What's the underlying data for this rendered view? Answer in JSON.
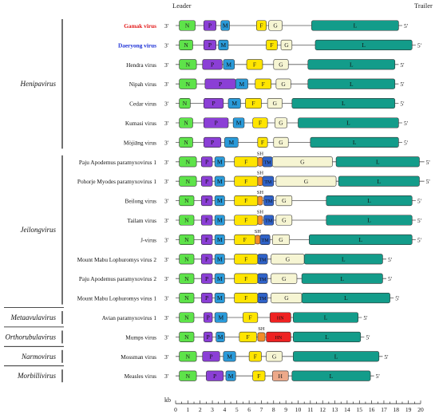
{
  "header": {
    "leader": "Leader",
    "trailer": "Trailer"
  },
  "end_labels": {
    "three_prime": "3'",
    "five_prime": "5'"
  },
  "colors": {
    "N": "#5ee34a",
    "P": "#8b3fd6",
    "M": "#2a9ad9",
    "F": "#ffe500",
    "G": "#f6f5d3",
    "L": "#139c8a",
    "SH": "#f28c28",
    "TM": "#2f62c8",
    "HN": "#ee2222",
    "H": "#eda98a",
    "gamak_label": "#e31b1b",
    "daeryong_label": "#1b2fd6"
  },
  "genera": [
    {
      "name": "Henipavirus",
      "first": 0,
      "last": 6
    },
    {
      "name": "Jeilongvirus",
      "first": 7,
      "last": 14
    },
    {
      "name": "Metaavulavirus",
      "first": 15,
      "last": 15
    },
    {
      "name": "Orthorubulavirus",
      "first": 16,
      "last": 16
    },
    {
      "name": "Narmovirus",
      "first": 17,
      "last": 17
    },
    {
      "name": "Morbillivirus",
      "first": 18,
      "last": 18
    }
  ],
  "viruses": [
    {
      "name": "Gamak virus",
      "bold": true,
      "color": "#e31b1b",
      "length": 18.5,
      "genes": [
        [
          "N",
          0.3,
          1.6
        ],
        [
          "P",
          2.3,
          3.3
        ],
        [
          "M",
          3.7,
          4.4
        ],
        [
          "F",
          6.6,
          7.4
        ],
        [
          "G",
          7.6,
          8.7
        ],
        [
          "L",
          11.1,
          18.2
        ]
      ]
    },
    {
      "name": "Daeryong virus",
      "bold": true,
      "color": "#1b2fd6",
      "length": 19.6,
      "genes": [
        [
          "N",
          0.3,
          1.4
        ],
        [
          "P",
          2.3,
          3.3
        ],
        [
          "M",
          3.5,
          4.3
        ],
        [
          "F",
          7.4,
          8.3
        ],
        [
          "G",
          8.6,
          9.5
        ],
        [
          "L",
          11.4,
          19.3
        ]
      ]
    },
    {
      "name": "Hendra virus",
      "length": 18.2,
      "genes": [
        [
          "N",
          0.3,
          1.7
        ],
        [
          "P",
          2.2,
          3.8
        ],
        [
          "M",
          3.9,
          4.8
        ],
        [
          "F",
          5.8,
          7.1
        ],
        [
          "G",
          8.0,
          9.2
        ],
        [
          "L",
          10.8,
          17.9
        ]
      ]
    },
    {
      "name": "Nipah virus",
      "length": 18.2,
      "genes": [
        [
          "N",
          0.3,
          1.7
        ],
        [
          "P",
          2.4,
          4.9
        ],
        [
          "M",
          4.9,
          5.9
        ],
        [
          "F",
          6.5,
          7.8
        ],
        [
          "G",
          8.2,
          9.4
        ],
        [
          "L",
          10.8,
          17.9
        ]
      ]
    },
    {
      "name": "Cedar virus",
      "length": 18.2,
      "genes": [
        [
          "N",
          0.3,
          1.2
        ],
        [
          "P",
          2.3,
          3.9
        ],
        [
          "M",
          4.3,
          5.3
        ],
        [
          "F",
          5.7,
          7.0
        ],
        [
          "G",
          7.5,
          8.7
        ],
        [
          "L",
          9.5,
          17.9
        ]
      ]
    },
    {
      "name": "Kumasi virus",
      "length": 18.5,
      "genes": [
        [
          "N",
          0.3,
          1.4
        ],
        [
          "P",
          2.3,
          4.3
        ],
        [
          "M",
          4.7,
          5.6
        ],
        [
          "F",
          6.3,
          7.5
        ],
        [
          "G",
          8.1,
          9.1
        ],
        [
          "L",
          10.0,
          18.2
        ]
      ]
    },
    {
      "name": "Mòjiāng virus",
      "length": 18.5,
      "genes": [
        [
          "N",
          0.3,
          1.4
        ],
        [
          "P",
          2.3,
          3.7
        ],
        [
          "M",
          4.0,
          5.1
        ],
        [
          "F",
          6.7,
          7.5
        ],
        [
          "G",
          8.0,
          9.2
        ],
        [
          "L",
          11.0,
          18.2
        ]
      ]
    },
    {
      "name": "Paju Apodemus paramyxovirus 1",
      "length": 20.3,
      "genes": [
        [
          "N",
          0.3,
          1.7
        ],
        [
          "P",
          2.1,
          3.0
        ],
        [
          "M",
          3.2,
          4.0
        ],
        [
          "F",
          4.8,
          6.7
        ],
        [
          "SH",
          6.7,
          7.1
        ],
        [
          "TM",
          7.1,
          7.9
        ],
        [
          "G",
          7.9,
          12.8
        ],
        [
          "L",
          13.1,
          19.9
        ]
      ]
    },
    {
      "name": "Pohorje Myodes paramyxovirus 1",
      "length": 20.3,
      "genes": [
        [
          "N",
          0.3,
          1.7
        ],
        [
          "P",
          2.1,
          3.0
        ],
        [
          "M",
          3.2,
          4.0
        ],
        [
          "F",
          4.8,
          6.7
        ],
        [
          "SH",
          6.7,
          7.1
        ],
        [
          "TM",
          7.1,
          8.0
        ],
        [
          "G",
          8.2,
          13.1
        ],
        [
          "L",
          13.3,
          19.9
        ]
      ]
    },
    {
      "name": "Beilong virus",
      "length": 19.6,
      "genes": [
        [
          "N",
          0.3,
          1.5
        ],
        [
          "P",
          2.1,
          3.0
        ],
        [
          "M",
          3.2,
          4.0
        ],
        [
          "F",
          4.8,
          6.7
        ],
        [
          "SH",
          6.7,
          7.1
        ],
        [
          "TM",
          7.2,
          8.0
        ],
        [
          "G",
          8.2,
          9.5
        ],
        [
          "L",
          12.3,
          19.3
        ]
      ]
    },
    {
      "name": "Tailam virus",
      "length": 19.6,
      "genes": [
        [
          "N",
          0.3,
          1.5
        ],
        [
          "P",
          2.1,
          3.0
        ],
        [
          "M",
          3.2,
          4.0
        ],
        [
          "F",
          4.8,
          6.7
        ],
        [
          "SH",
          6.7,
          7.1
        ],
        [
          "TM",
          7.2,
          8.0
        ],
        [
          "G",
          8.2,
          9.5
        ],
        [
          "L",
          12.3,
          19.3
        ]
      ]
    },
    {
      "name": "J-virus",
      "length": 19.6,
      "genes": [
        [
          "N",
          0.3,
          1.5
        ],
        [
          "P",
          2.1,
          3.0
        ],
        [
          "M",
          3.2,
          4.0
        ],
        [
          "F",
          4.8,
          6.5
        ],
        [
          "SH",
          6.5,
          6.9
        ],
        [
          "TM",
          6.9,
          7.7
        ],
        [
          "G",
          7.9,
          9.3
        ],
        [
          "L",
          10.9,
          19.3
        ]
      ]
    },
    {
      "name": "Mount Mabu Lophuromys virus 2",
      "length": 17.2,
      "genes": [
        [
          "N",
          0.3,
          1.5
        ],
        [
          "P",
          2.1,
          3.0
        ],
        [
          "M",
          3.2,
          4.0
        ],
        [
          "F",
          4.8,
          6.7
        ],
        [
          "TM",
          6.7,
          7.5
        ],
        [
          "G",
          7.8,
          10.5
        ],
        [
          "L",
          10.5,
          16.9
        ]
      ]
    },
    {
      "name": "Paju Apodemus paramyxovirus 2",
      "length": 17.2,
      "genes": [
        [
          "N",
          0.3,
          1.5
        ],
        [
          "P",
          2.1,
          3.0
        ],
        [
          "M",
          3.2,
          4.0
        ],
        [
          "F",
          4.8,
          6.7
        ],
        [
          "TM",
          6.7,
          7.5
        ],
        [
          "G",
          7.8,
          9.9
        ],
        [
          "L",
          10.3,
          16.9
        ]
      ]
    },
    {
      "name": "Mount Mabu Lophuromys virus 1",
      "length": 17.8,
      "genes": [
        [
          "N",
          0.3,
          1.5
        ],
        [
          "P",
          2.1,
          3.0
        ],
        [
          "M",
          3.2,
          4.0
        ],
        [
          "F",
          4.8,
          6.7
        ],
        [
          "TM",
          6.7,
          7.5
        ],
        [
          "G",
          7.8,
          10.3
        ],
        [
          "L",
          10.3,
          17.5
        ]
      ]
    },
    {
      "name": "Avian paramyxovirus 1",
      "length": 15.2,
      "genes": [
        [
          "N",
          0.3,
          1.5
        ],
        [
          "P",
          2.3,
          3.0
        ],
        [
          "M",
          3.2,
          4.2
        ],
        [
          "F",
          5.5,
          6.7
        ],
        [
          "HN",
          7.7,
          9.4
        ],
        [
          "L",
          9.6,
          14.9
        ]
      ]
    },
    {
      "name": "Mumps virus",
      "length": 15.4,
      "genes": [
        [
          "N",
          0.3,
          1.5
        ],
        [
          "P",
          2.3,
          3.0
        ],
        [
          "M",
          3.3,
          4.0
        ],
        [
          "F",
          5.2,
          6.6
        ],
        [
          "SH",
          6.7,
          7.3
        ],
        [
          "HN",
          7.4,
          9.4
        ],
        [
          "L",
          9.6,
          15.1
        ]
      ]
    },
    {
      "name": "Mossman virus",
      "length": 16.9,
      "genes": [
        [
          "N",
          0.3,
          1.7
        ],
        [
          "P",
          2.2,
          3.6
        ],
        [
          "M",
          3.9,
          4.9
        ],
        [
          "F",
          6.0,
          7.0
        ],
        [
          "G",
          7.4,
          8.7
        ],
        [
          "L",
          9.6,
          16.6
        ]
      ]
    },
    {
      "name": "Measles virus",
      "length": 16.2,
      "genes": [
        [
          "N",
          0.3,
          1.7
        ],
        [
          "P",
          2.5,
          3.9
        ],
        [
          "M",
          4.1,
          4.9
        ],
        [
          "F",
          6.3,
          7.3
        ],
        [
          "H",
          7.9,
          9.2
        ],
        [
          "L",
          9.5,
          15.9
        ]
      ]
    }
  ],
  "scale": {
    "unit": "kb",
    "min": 0,
    "max": 20,
    "ticks": [
      0,
      1,
      2,
      3,
      4,
      5,
      6,
      7,
      8,
      9,
      10,
      11,
      12,
      13,
      14,
      15,
      16,
      17,
      18,
      19,
      20
    ]
  }
}
